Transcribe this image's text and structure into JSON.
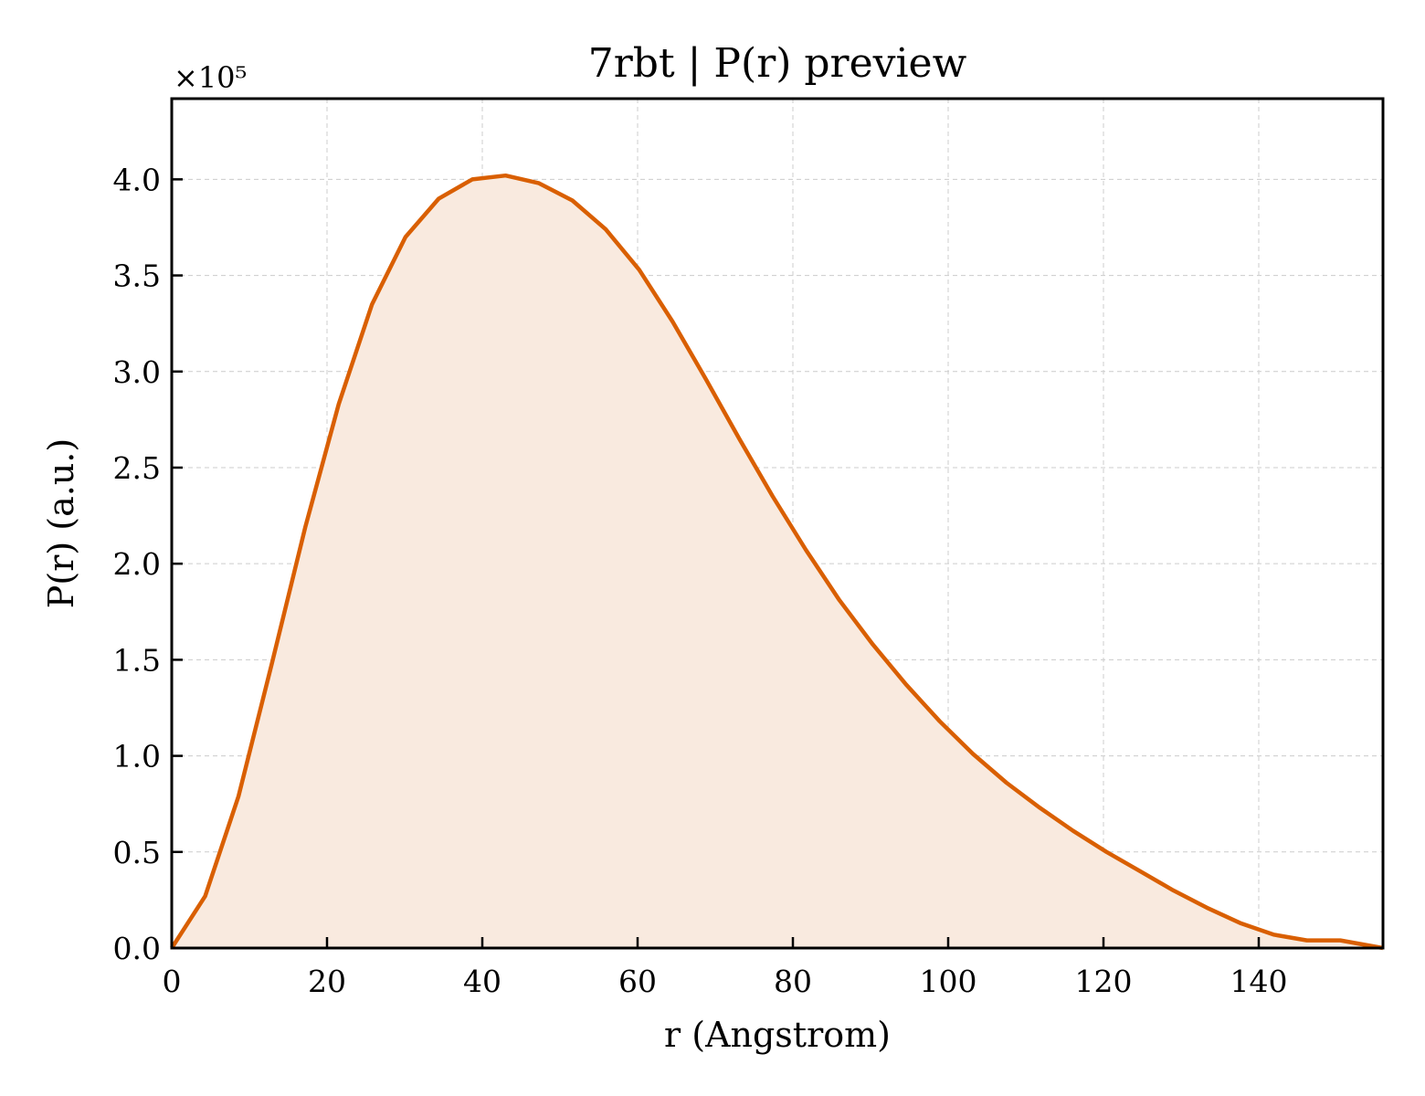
{
  "chart_data": {
    "type": "area",
    "title": "7rbt | P(r) preview",
    "xlabel": "r (Angstrom)",
    "ylabel": "P(r) (a.u.)",
    "y_offset_label": "×10⁵",
    "xlim": [
      0,
      156
    ],
    "ylim": [
      0,
      4.42
    ],
    "xticks": [
      0,
      20,
      40,
      60,
      80,
      100,
      120,
      140
    ],
    "yticks": [
      0.0,
      0.5,
      1.0,
      1.5,
      2.0,
      2.5,
      3.0,
      3.5,
      4.0
    ],
    "xtick_labels": [
      "0",
      "20",
      "40",
      "60",
      "80",
      "100",
      "120",
      "140"
    ],
    "ytick_labels": [
      "0.0",
      "0.5",
      "1.0",
      "1.5",
      "2.0",
      "2.5",
      "3.0",
      "3.5",
      "4.0"
    ],
    "grid": true,
    "line_color": "#d95f02",
    "fill_color": "#f9eadf",
    "series": [
      {
        "x": [
          0,
          4.3,
          8.6,
          12.9,
          17.2,
          21.5,
          25.8,
          30.1,
          34.4,
          38.7,
          43.0,
          47.3,
          51.6,
          55.9,
          60.2,
          64.5,
          68.8,
          73.1,
          77.4,
          81.7,
          86.0,
          90.3,
          94.6,
          98.9,
          103.2,
          107.5,
          111.8,
          116.1,
          120.4,
          124.7,
          129.0,
          133.3,
          137.6,
          141.9,
          146.2,
          150.5,
          156.0
        ],
        "y": [
          0.0,
          0.27,
          0.79,
          1.48,
          2.19,
          2.83,
          3.35,
          3.7,
          3.9,
          4.0,
          4.02,
          3.98,
          3.89,
          3.74,
          3.53,
          3.26,
          2.96,
          2.65,
          2.35,
          2.07,
          1.81,
          1.58,
          1.37,
          1.18,
          1.01,
          0.86,
          0.73,
          0.61,
          0.5,
          0.4,
          0.3,
          0.21,
          0.13,
          0.07,
          0.04,
          0.04,
          0.0
        ]
      }
    ]
  }
}
